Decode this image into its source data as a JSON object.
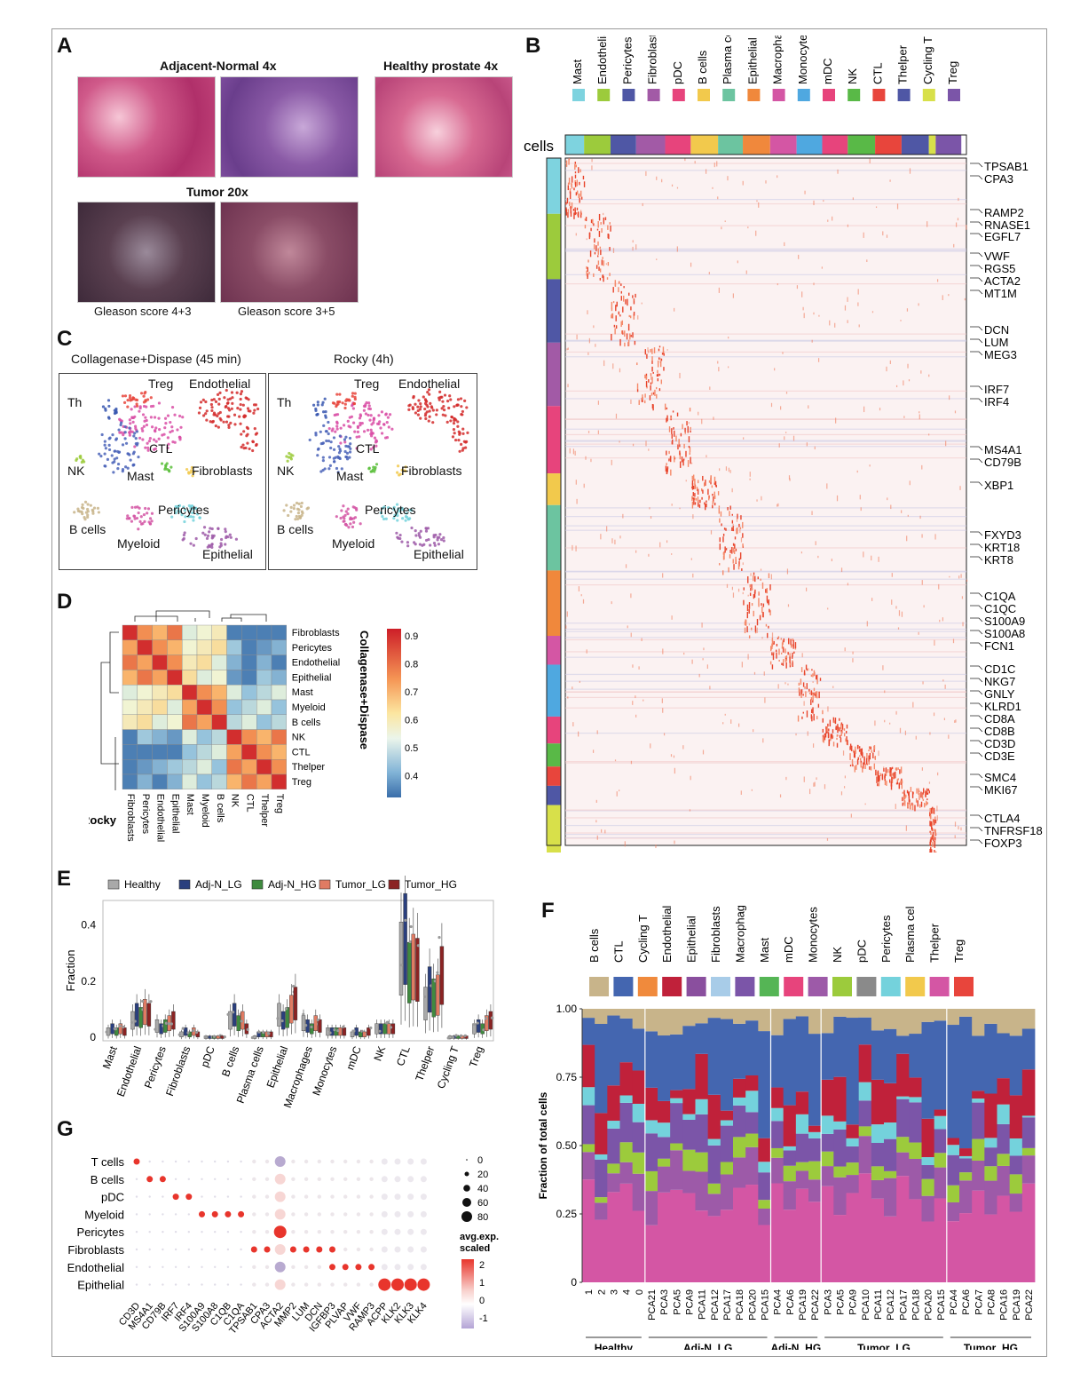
{
  "panels": {
    "A": "A",
    "B": "B",
    "C": "C",
    "D": "D",
    "E": "E",
    "F": "F",
    "G": "G"
  },
  "panelA": {
    "adjacent_title": "Adjacent-Normal 4x",
    "healthy_title": "Healthy prostate 4x",
    "tumor_title": "Tumor 20x",
    "gleason1": "Gleason score 4+3",
    "gleason2": "Gleason score 3+5"
  },
  "panelB": {
    "cells_label": "cells",
    "cell_types": [
      "Mast",
      "Endothelial",
      "Pericytes",
      "Fibroblasts",
      "pDC",
      "B cells",
      "Plasma cells",
      "Epithelial",
      "Macrophage",
      "Monocytes",
      "mDC",
      "NK",
      "CTL",
      "Thelper",
      "Cycling T",
      "Treg"
    ],
    "genes": [
      "TPSAB1",
      "CPA3",
      "RAMP2",
      "RNASE1",
      "EGFL7",
      "VWF",
      "RGS5",
      "ACTA2",
      "MT1M",
      "DCN",
      "LUM",
      "MEG3",
      "IRF7",
      "IRF4",
      "MS4A1",
      "CD79B",
      "XBP1",
      "FXYD3",
      "KRT18",
      "KRT8",
      "C1QA",
      "C1QC",
      "S100A9",
      "S100A8",
      "FCN1",
      "CD1C",
      "NKG7",
      "GNLY",
      "KLRD1",
      "CD8A",
      "CD8B",
      "CD3D",
      "CD3E",
      "SMC4",
      "MKI67",
      "CTLA4",
      "TNFRSF18",
      "FOXP3"
    ]
  },
  "panelC": {
    "title_left": "Collagenase+Dispase (45 min)",
    "title_right": "Rocky (4h)",
    "labels": {
      "Treg": "Treg",
      "Endothelial": "Endothelial",
      "Th": "Th",
      "CTL": "CTL",
      "NK": "NK",
      "Mast": "Mast",
      "Fibroblasts": "Fibroblasts",
      "Pericytes": "Pericytes",
      "Bcells": "B cells",
      "Myeloid": "Myeloid",
      "Epithelial": "Epithelial"
    }
  },
  "panelD": {
    "row_labels": [
      "Fibroblasts",
      "Pericytes",
      "Endothelial",
      "Epithelial",
      "Mast",
      "Myeloid",
      "B cells",
      "NK",
      "CTL",
      "Thelper",
      "Treg"
    ],
    "col_labels": [
      "Fibroblasts",
      "Pericytes",
      "Endothelial",
      "Epithelial",
      "Mast",
      "Myeloid",
      "B cells",
      "NK",
      "CTL",
      "Thelper",
      "Treg"
    ],
    "y_axis_title": "Collagenase+Dispase",
    "x_axis_title": "Rocky",
    "colorbar_ticks": [
      "0.9",
      "0.8",
      "0.7",
      "0.6",
      "0.5",
      "0.4"
    ]
  },
  "chart_data": [
    {
      "type": "box",
      "panel": "E",
      "ylabel": "Fraction",
      "yticks": [
        "0.4",
        "0.2",
        "0"
      ],
      "ylim": [
        0,
        0.5
      ],
      "legend": [
        "Healthy",
        "Adj-N_LG",
        "Adj-N_HG",
        "Tumor_LG",
        "Tumor_HG"
      ],
      "legend_colors": [
        "#a9a9a9",
        "#2a3f7e",
        "#3f8a3f",
        "#e07b63",
        "#8b2323"
      ],
      "categories": [
        "Mast",
        "Endothelial",
        "Pericytes",
        "Fibroblasts",
        "pDC",
        "B cells",
        "Plasma cells",
        "Epithelial",
        "Macrophages",
        "Monocytes",
        "mDC",
        "NK",
        "CTL",
        "Thelper",
        "Cycling T",
        "Treg"
      ],
      "medians": [
        [
          0.02,
          0.03,
          0.02,
          0.03,
          0.02
        ],
        [
          0.06,
          0.08,
          0.07,
          0.09,
          0.08
        ],
        [
          0.04,
          0.03,
          0.04,
          0.05,
          0.06
        ],
        [
          0.01,
          0.02,
          0.01,
          0.02,
          0.01
        ],
        [
          0.0,
          0.0,
          0.0,
          0.0,
          0.0
        ],
        [
          0.06,
          0.08,
          0.05,
          0.06,
          0.03
        ],
        [
          0.0,
          0.01,
          0.01,
          0.01,
          0.01
        ],
        [
          0.08,
          0.06,
          0.07,
          0.1,
          0.12
        ],
        [
          0.05,
          0.04,
          0.03,
          0.05,
          0.04
        ],
        [
          0.02,
          0.02,
          0.02,
          0.02,
          0.02
        ],
        [
          0.01,
          0.02,
          0.01,
          0.01,
          0.02
        ],
        [
          0.03,
          0.03,
          0.03,
          0.03,
          0.03
        ],
        [
          0.28,
          0.35,
          0.23,
          0.25,
          0.24
        ],
        [
          0.12,
          0.17,
          0.14,
          0.15,
          0.22
        ],
        [
          0.0,
          0.0,
          0.0,
          0.0,
          0.0
        ],
        [
          0.03,
          0.04,
          0.03,
          0.05,
          0.06
        ]
      ]
    },
    {
      "type": "stacked-bar",
      "panel": "F",
      "ylabel": "Fraction of total cells",
      "yticks": [
        "1.00",
        "0.75",
        "0.50",
        "0.25",
        "0"
      ],
      "ylim": [
        0,
        1
      ],
      "legend": [
        "B cells",
        "CTL",
        "Cycling T",
        "Endothelial",
        "Epithelial",
        "Fibroblasts",
        "Macrophages",
        "Mast",
        "mDC",
        "Monocytes",
        "NK",
        "pDC",
        "Pericytes",
        "Plasma cells",
        "Thelper",
        "Treg"
      ],
      "legend_colors": [
        "#c8b48a",
        "#4466b0",
        "#f08a3c",
        "#c0213a",
        "#8a4f9e",
        "#a8cce8",
        "#7b55a8",
        "#55b555",
        "#e7447c",
        "#9d5aa8",
        "#9ccb3c",
        "#8a8a8a",
        "#74d2dc",
        "#f2c94c",
        "#d456a4",
        "#e8453c"
      ],
      "samples": [
        "1",
        "2",
        "3",
        "4",
        "0",
        "PCA21",
        "PCA3",
        "PCA5",
        "PCA9",
        "PCA11",
        "PCA12",
        "PCA17",
        "PCA18",
        "PCA20",
        "PCA15",
        "PCA4",
        "PCA6",
        "PCA19",
        "PCA22",
        "PCA3",
        "PCA5",
        "PCA9",
        "PCA10",
        "PCA11",
        "PCA12",
        "PCA17",
        "PCA18",
        "PCA20",
        "PCA15",
        "PCA4",
        "PCA6",
        "PCA7",
        "PCA8",
        "PCA16",
        "PCA19",
        "PCA22"
      ],
      "groups": [
        "Healthy",
        "Adj-N_LG",
        "Adj-N_HG",
        "Tumor_LG",
        "Tumor_HG"
      ]
    },
    {
      "type": "dot",
      "panel": "G",
      "rows": [
        "T cells",
        "B cells",
        "pDC",
        "Myeloid",
        "Pericytes",
        "Fibroblasts",
        "Endothelial",
        "Epithelial"
      ],
      "cols": [
        "CD3D",
        "MS4A1",
        "CD79B",
        "IRF7",
        "IRF4",
        "S100A9",
        "S100A8",
        "C1QB",
        "C1QA",
        "TPSAB1",
        "CPA3",
        "ACTA2",
        "MMP2",
        "LUM",
        "DCN",
        "IGFBP3",
        "PLVAP",
        "VWF",
        "RAMP3",
        "ACPP",
        "KLK2",
        "KLK3",
        "KLK4"
      ],
      "size_legend": [
        "0",
        "20",
        "40",
        "60",
        "80"
      ],
      "color_legend_title": "avg.exp.\nscaled",
      "color_legend_ticks": [
        "2",
        "1",
        "0",
        "-1"
      ]
    }
  ]
}
